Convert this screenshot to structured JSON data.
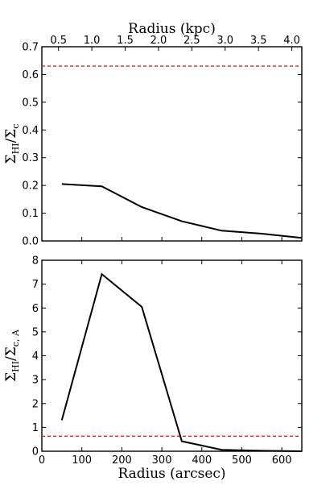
{
  "chart_data": [
    {
      "type": "line",
      "panel": "top",
      "xlabel": "",
      "ylabel": "Σ_HI/Σ_c",
      "ylabel_main": "Σ",
      "ylabel_sub1": "HI",
      "ylabel_mid": "/Σ",
      "ylabel_sub2": "c",
      "top_xlabel": "Radius (kpc)",
      "xlim": [
        0,
        650
      ],
      "ylim": [
        0,
        0.7
      ],
      "yticks": [
        "0.0",
        "0.1",
        "0.2",
        "0.3",
        "0.4",
        "0.5",
        "0.6",
        "0.7"
      ],
      "top_xticks": [
        "0.5",
        "1.0",
        "1.5",
        "2.0",
        "2.5",
        "3.0",
        "3.5",
        "4.0"
      ],
      "top_xlim_kpc": [
        0.25,
        4.15
      ],
      "series": [
        {
          "x": [
            50,
            150,
            250,
            350,
            450,
            550,
            650
          ],
          "values": [
            0.205,
            0.197,
            0.122,
            0.071,
            0.037,
            0.026,
            0.011
          ]
        }
      ],
      "ref_line_y": 0.63,
      "ref_color": "#e8201c"
    },
    {
      "type": "line",
      "panel": "bottom",
      "xlabel": "Radius (arcsec)",
      "ylabel": "Σ_HI/Σ_c,A",
      "ylabel_main": "Σ",
      "ylabel_sub1": "HI",
      "ylabel_mid": "/Σ",
      "ylabel_sub2": "c, A",
      "xlim": [
        0,
        650
      ],
      "ylim": [
        0,
        8
      ],
      "xticks": [
        "0",
        "100",
        "200",
        "300",
        "400",
        "500",
        "600"
      ],
      "yticks": [
        "0",
        "1",
        "2",
        "3",
        "4",
        "5",
        "6",
        "7",
        "8"
      ],
      "series": [
        {
          "x": [
            50,
            150,
            250,
            350,
            450,
            550,
            650
          ],
          "values": [
            1.3,
            7.42,
            6.05,
            0.42,
            0.06,
            0.02,
            0.0
          ]
        }
      ],
      "ref_line_y": 0.63,
      "ref_color": "#e8201c"
    }
  ]
}
